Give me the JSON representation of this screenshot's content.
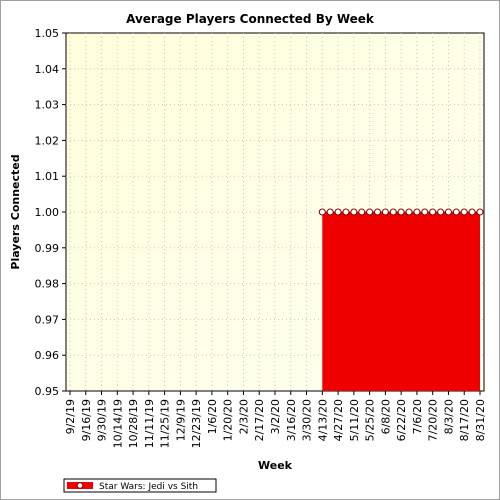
{
  "chart_data": {
    "type": "area",
    "title": "Average Players Connected By Week",
    "xlabel": "Week",
    "ylabel": "Players Connected",
    "ylim": [
      0.95,
      1.05
    ],
    "yticks": [
      "1.05",
      "1.04",
      "1.03",
      "1.02",
      "1.01",
      "1.00",
      "0.99",
      "0.98",
      "0.97",
      "0.96",
      "0.95"
    ],
    "grid": true,
    "legend_position": "bottom-left",
    "tick_labels": [
      "9/2/19",
      "9/16/19",
      "9/30/19",
      "10/14/19",
      "10/28/19",
      "11/11/19",
      "11/25/19",
      "12/9/19",
      "12/23/19",
      "1/6/20",
      "1/20/20",
      "2/3/20",
      "2/17/20",
      "3/2/20",
      "3/16/20",
      "3/30/20",
      "4/13/20",
      "4/27/20",
      "5/11/20",
      "5/25/20",
      "6/8/20",
      "6/22/20",
      "7/6/20",
      "7/20/20",
      "8/3/20",
      "8/17/20",
      "8/31/20"
    ],
    "x": [
      "9/2/19",
      "9/9/19",
      "9/16/19",
      "9/23/19",
      "9/30/19",
      "10/7/19",
      "10/14/19",
      "10/21/19",
      "10/28/19",
      "11/4/19",
      "11/11/19",
      "11/18/19",
      "11/25/19",
      "12/2/19",
      "12/9/19",
      "12/16/19",
      "12/23/19",
      "12/30/19",
      "1/6/20",
      "1/13/20",
      "1/20/20",
      "1/27/20",
      "2/3/20",
      "2/10/20",
      "2/17/20",
      "2/24/20",
      "3/2/20",
      "3/9/20",
      "3/16/20",
      "3/23/20",
      "3/30/20",
      "4/6/20",
      "4/13/20",
      "4/20/20",
      "4/27/20",
      "5/4/20",
      "5/11/20",
      "5/18/20",
      "5/25/20",
      "6/1/20",
      "6/8/20",
      "6/15/20",
      "6/22/20",
      "6/29/20",
      "7/6/20",
      "7/13/20",
      "7/20/20",
      "7/27/20",
      "8/3/20",
      "8/10/20",
      "8/17/20",
      "8/24/20",
      "8/31/20"
    ],
    "series": [
      {
        "name": "Star Wars: Jedi vs Sith",
        "color": "#ee0000",
        "values": [
          null,
          null,
          null,
          null,
          null,
          null,
          null,
          null,
          null,
          null,
          null,
          null,
          null,
          null,
          null,
          null,
          null,
          null,
          null,
          null,
          null,
          null,
          null,
          null,
          null,
          null,
          null,
          null,
          null,
          null,
          null,
          null,
          1.0,
          1.0,
          1.0,
          1.0,
          1.0,
          1.0,
          1.0,
          1.0,
          1.0,
          1.0,
          1.0,
          1.0,
          1.0,
          1.0,
          1.0,
          1.0,
          1.0,
          1.0,
          1.0,
          1.0,
          1.0
        ]
      }
    ]
  }
}
